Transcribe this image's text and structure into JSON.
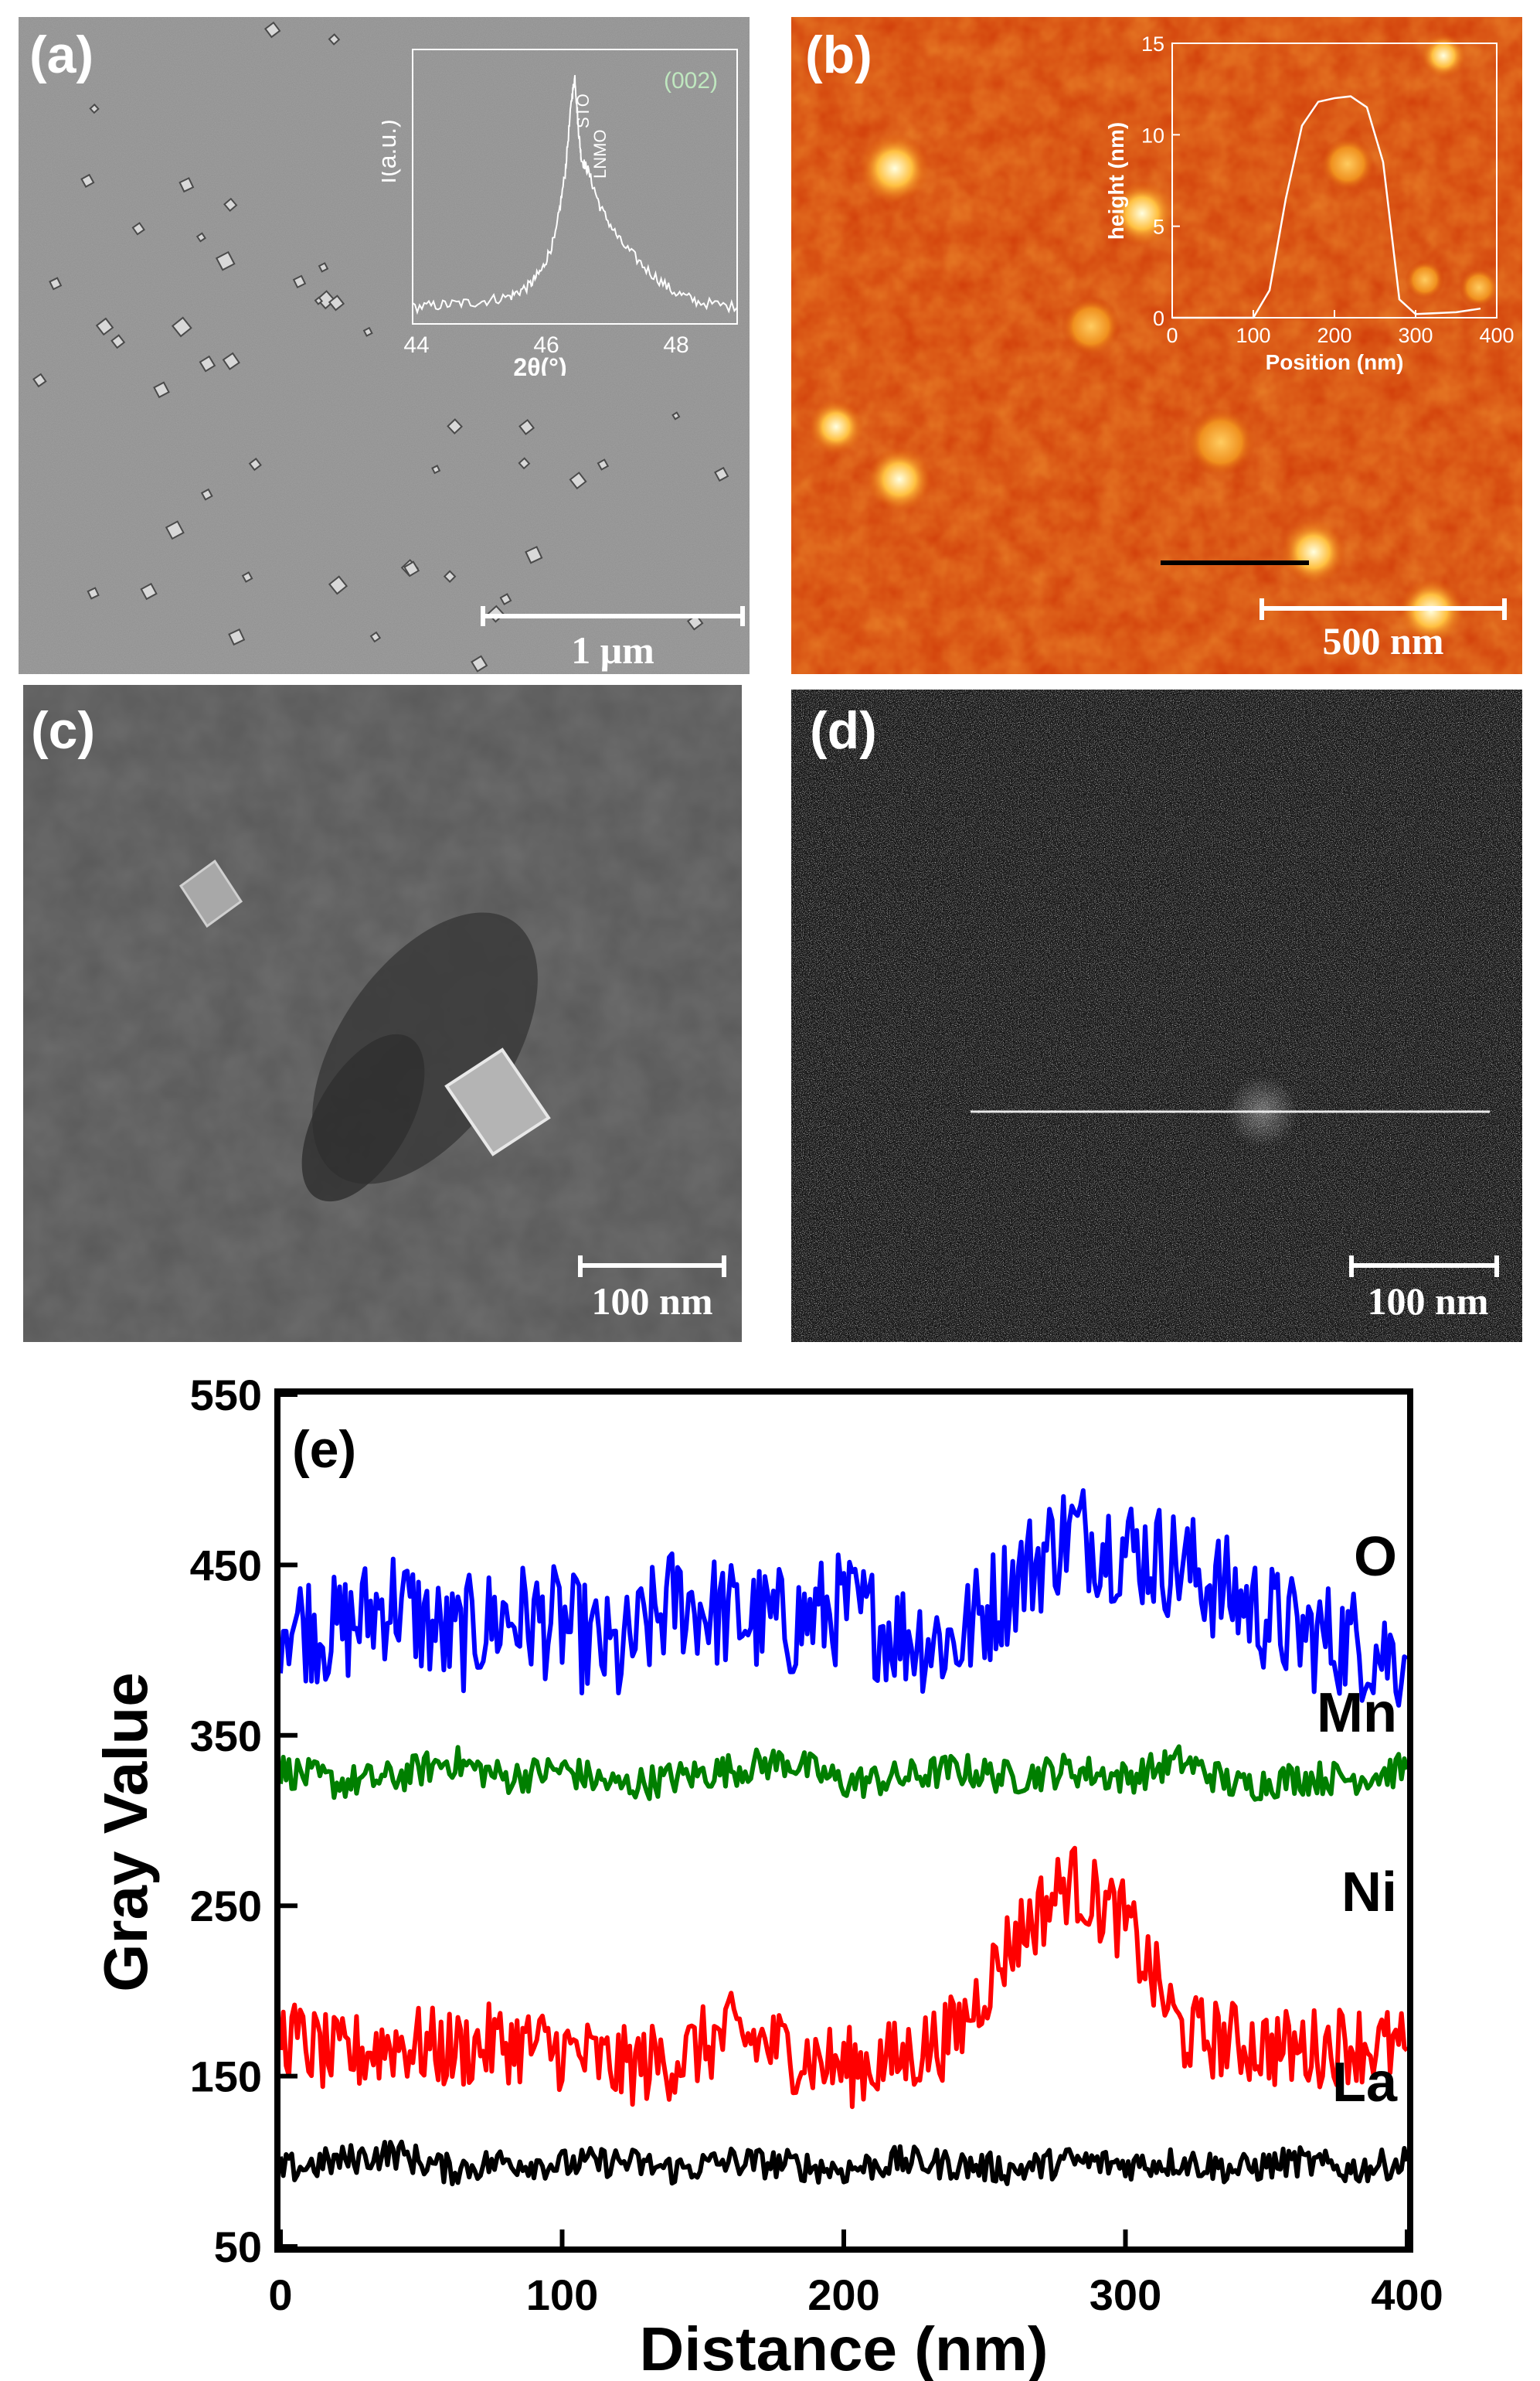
{
  "panels": {
    "a": {
      "label": "(a)",
      "scale_bar": "1 μm",
      "inset": {
        "ylabel": "I(a.u.)",
        "xlabel": "2θ(°)",
        "reflection": "(002)",
        "peak_labels": [
          "STO",
          "LNMO"
        ],
        "x_ticks": [
          "44",
          "46",
          "48"
        ]
      }
    },
    "b": {
      "label": "(b)",
      "scale_bar": "500 nm",
      "inset": {
        "ylabel": "height (nm)",
        "xlabel": "Position (nm)",
        "x_ticks": [
          "0",
          "100",
          "200",
          "300",
          "400"
        ],
        "y_ticks": [
          "0",
          "5",
          "10",
          "15"
        ]
      }
    },
    "c": {
      "label": "(c)",
      "scale_bar": "100 nm"
    },
    "d": {
      "label": "(d)",
      "scale_bar": "100 nm"
    }
  },
  "colors": {
    "O": "#0000ff",
    "Mn": "#007f00",
    "Ni": "#ff0000",
    "La": "#000000",
    "afm": "#cc2200"
  },
  "chart_data": [
    {
      "panel": "(a) inset",
      "type": "line",
      "title": "",
      "xlabel": "2θ(°)",
      "ylabel": "I(a.u.)",
      "xlim": [
        44,
        49
      ],
      "x": [
        44.0,
        44.5,
        45.0,
        45.5,
        45.8,
        46.0,
        46.2,
        46.35,
        46.45,
        46.5,
        46.55,
        46.6,
        46.7,
        46.9,
        47.2,
        47.6,
        48.0,
        48.4,
        49.0
      ],
      "y": [
        0.06,
        0.07,
        0.08,
        0.1,
        0.14,
        0.2,
        0.32,
        0.55,
        0.82,
        0.9,
        0.72,
        0.6,
        0.56,
        0.42,
        0.3,
        0.2,
        0.12,
        0.08,
        0.06
      ]
    },
    {
      "panel": "(b) inset",
      "type": "line",
      "title": "",
      "xlabel": "Position (nm)",
      "ylabel": "height (nm)",
      "xlim": [
        0,
        400
      ],
      "ylim": [
        0,
        15
      ],
      "x": [
        0,
        50,
        100,
        120,
        140,
        160,
        180,
        200,
        220,
        240,
        260,
        280,
        300,
        350,
        380
      ],
      "y": [
        0,
        0,
        0,
        1.5,
        6.5,
        10.5,
        11.8,
        12.0,
        12.1,
        11.5,
        8.5,
        1.0,
        0.2,
        0.3,
        0.5
      ]
    },
    {
      "panel": "(e)",
      "type": "line",
      "title": "(e)",
      "xlabel": "Distance (nm)",
      "ylabel": "Gray Value",
      "xlim": [
        0,
        400
      ],
      "ylim": [
        50,
        550
      ],
      "x_ticks": [
        "0",
        "100",
        "200",
        "300",
        "400"
      ],
      "y_ticks": [
        "50",
        "150",
        "250",
        "350",
        "450",
        "550"
      ],
      "x": [
        0,
        20,
        40,
        60,
        80,
        100,
        120,
        140,
        160,
        180,
        200,
        220,
        240,
        260,
        280,
        300,
        320,
        340,
        360,
        380,
        400
      ],
      "series": [
        {
          "name": "O",
          "values": [
            420,
            410,
            430,
            405,
            420,
            415,
            395,
            430,
            420,
            415,
            425,
            410,
            405,
            440,
            470,
            460,
            450,
            430,
            410,
            405,
            395
          ]
        },
        {
          "name": "Mn",
          "values": [
            330,
            322,
            325,
            335,
            325,
            330,
            320,
            325,
            330,
            335,
            322,
            325,
            330,
            325,
            330,
            325,
            335,
            320,
            325,
            325,
            330
          ]
        },
        {
          "name": "Ni",
          "values": [
            175,
            160,
            170,
            165,
            170,
            165,
            155,
            160,
            175,
            165,
            155,
            160,
            175,
            230,
            265,
            240,
            175,
            170,
            165,
            170,
            165
          ]
        },
        {
          "name": "La",
          "values": [
            95,
            100,
            105,
            95,
            100,
            98,
            100,
            95,
            100,
            98,
            95,
            100,
            98,
            95,
            100,
            98,
            100,
            95,
            100,
            95,
            100
          ]
        }
      ]
    }
  ]
}
